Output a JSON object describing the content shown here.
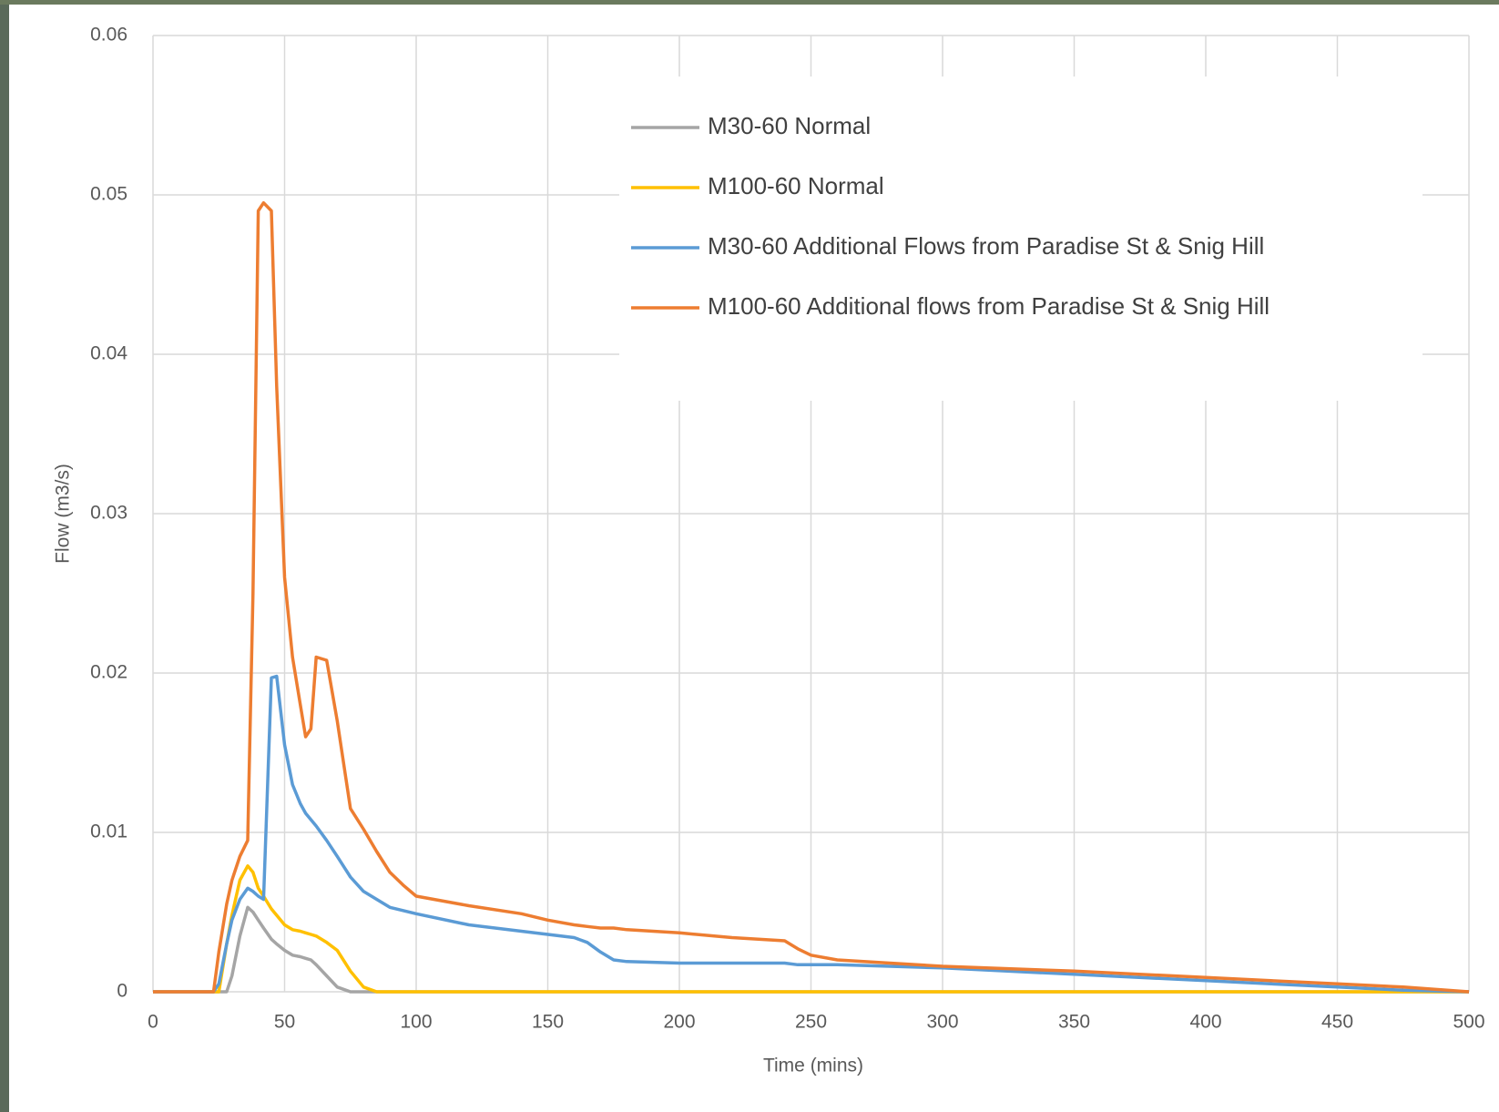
{
  "chart_data": {
    "type": "line",
    "x_label": "Time (mins)",
    "y_label": "Flow (m3/s)",
    "x": [
      0,
      23,
      25,
      28,
      30,
      33,
      36,
      38,
      40,
      42,
      45,
      47,
      50,
      53,
      56,
      58,
      60,
      62,
      66,
      70,
      75,
      80,
      85,
      90,
      95,
      100,
      120,
      140,
      150,
      160,
      165,
      170,
      175,
      180,
      200,
      220,
      240,
      245,
      250,
      260,
      280,
      300,
      350,
      400,
      450,
      475,
      500
    ],
    "series": [
      {
        "name": "M30-60 Normal",
        "color": "#a5a5a5",
        "values": [
          0,
          0,
          0,
          0,
          0.001,
          0.0035,
          0.0053,
          0.005,
          0.0045,
          0.004,
          0.0033,
          0.003,
          0.0026,
          0.0023,
          0.0022,
          0.0021,
          0.002,
          0.0017,
          0.001,
          0.0003,
          0,
          0,
          0,
          0,
          0,
          0,
          0,
          0,
          0,
          0,
          0,
          0,
          0,
          0,
          0,
          0,
          0,
          0,
          0,
          0,
          0,
          0,
          0,
          0,
          0,
          0,
          0
        ]
      },
      {
        "name": "M100-60 Normal",
        "color": "#ffc000",
        "values": [
          0,
          0,
          0,
          0.003,
          0.0048,
          0.007,
          0.0079,
          0.0075,
          0.0065,
          0.006,
          0.0052,
          0.0048,
          0.0042,
          0.0039,
          0.0038,
          0.0037,
          0.0036,
          0.0035,
          0.0031,
          0.0026,
          0.0013,
          0.0003,
          0,
          0,
          0,
          0,
          0,
          0,
          0,
          0,
          0,
          0,
          0,
          0,
          0,
          0,
          0,
          0,
          0,
          0,
          0,
          0,
          0,
          0,
          0,
          0,
          0
        ]
      },
      {
        "name": "M30-60 Additional Flows from Paradise St & Snig Hill",
        "color": "#5b9bd5",
        "values": [
          0,
          0,
          0.0005,
          0.003,
          0.0045,
          0.0058,
          0.0065,
          0.0063,
          0.006,
          0.0058,
          0.0197,
          0.0198,
          0.0155,
          0.013,
          0.0118,
          0.0112,
          0.0108,
          0.0104,
          0.0095,
          0.0085,
          0.0072,
          0.0063,
          0.0058,
          0.0053,
          0.0051,
          0.0049,
          0.0042,
          0.0038,
          0.0036,
          0.0034,
          0.0031,
          0.0025,
          0.002,
          0.0019,
          0.0018,
          0.0018,
          0.0018,
          0.0017,
          0.0017,
          0.0017,
          0.0016,
          0.0015,
          0.0011,
          0.0007,
          0.0003,
          0.0001,
          0
        ]
      },
      {
        "name": "M100-60 Additional flows from Paradise St & Snig Hill",
        "color": "#ed7d31",
        "values": [
          0,
          0,
          0.0025,
          0.0055,
          0.007,
          0.0085,
          0.0095,
          0.025,
          0.049,
          0.0495,
          0.049,
          0.038,
          0.026,
          0.021,
          0.018,
          0.016,
          0.0165,
          0.021,
          0.0208,
          0.017,
          0.0115,
          0.0102,
          0.0088,
          0.0075,
          0.0067,
          0.006,
          0.0054,
          0.0049,
          0.0045,
          0.0042,
          0.0041,
          0.004,
          0.004,
          0.0039,
          0.0037,
          0.0034,
          0.0032,
          0.0027,
          0.0023,
          0.002,
          0.0018,
          0.0016,
          0.0013,
          0.0009,
          0.0005,
          0.0003,
          0
        ]
      }
    ],
    "xlim": [
      0,
      500
    ],
    "xticks": [
      0,
      50,
      100,
      150,
      200,
      250,
      300,
      350,
      400,
      450,
      500
    ],
    "ylim": [
      0,
      0.06
    ],
    "yticks": [
      0,
      0.01,
      0.02,
      0.03,
      0.04,
      0.05,
      0.06
    ],
    "grid": true,
    "legend": "upper right"
  }
}
